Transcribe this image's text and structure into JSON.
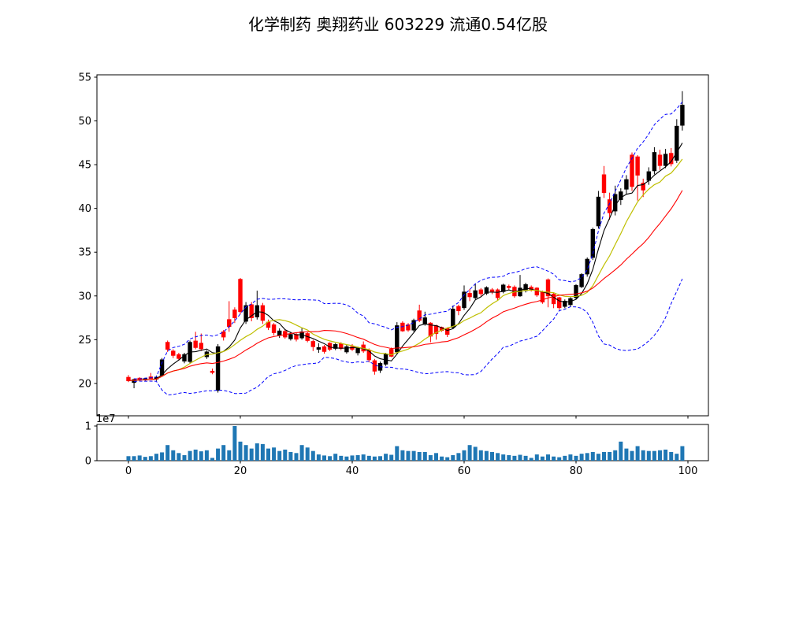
{
  "title": "化学制药  奥翔药业  603229  流通0.54亿股",
  "colors": {
    "up": "#000000",
    "down": "#ff0000",
    "ma_fast": "#000000",
    "ma_mid": "#bfbf00",
    "ma_slow": "#ff0000",
    "bollinger": "#0000ff",
    "volume": "#1f77b4",
    "axis": "#000000",
    "background": "#ffffff"
  },
  "chart_data": {
    "type": "candlestick",
    "title": "化学制药  奥翔药业  603229  流通0.54亿股",
    "x": "bar index 0-99",
    "x_ticks": [
      0,
      20,
      40,
      60,
      80,
      100
    ],
    "price_ticks": [
      20,
      25,
      30,
      35,
      40,
      45,
      50,
      55
    ],
    "volume_ticks": [
      0,
      1
    ],
    "volume_offset_label": "1e7",
    "volume_unit": 10000000,
    "x_range": [
      -5.63,
      103.66
    ],
    "price_range": [
      16.3,
      55.27
    ],
    "volume_range": [
      0,
      1.045
    ],
    "grid": false,
    "legend": "none",
    "overlays": [
      {
        "name": "MA fast",
        "window": 5,
        "style": "solid black"
      },
      {
        "name": "MA mid",
        "window": 10,
        "style": "solid yellow"
      },
      {
        "name": "MA slow",
        "window": 20,
        "style": "solid red"
      },
      {
        "name": "Bollinger upper/lower",
        "window": 20,
        "k": 2,
        "style": "dashed blue"
      }
    ],
    "candles_ohlc": [
      [
        20.7,
        20.95,
        20.15,
        20.3
      ],
      [
        20.1,
        20.55,
        19.45,
        20.45
      ],
      [
        20.6,
        20.7,
        20.3,
        20.4
      ],
      [
        20.45,
        20.6,
        20.3,
        20.55
      ],
      [
        20.75,
        21.2,
        20.5,
        20.55
      ],
      [
        20.5,
        20.9,
        20.3,
        20.7
      ],
      [
        20.95,
        22.9,
        20.8,
        22.7
      ],
      [
        24.7,
        24.9,
        23.6,
        23.9
      ],
      [
        23.7,
        23.9,
        22.9,
        23.2
      ],
      [
        23.3,
        23.5,
        22.6,
        22.85
      ],
      [
        22.55,
        23.5,
        22.3,
        23.3
      ],
      [
        22.5,
        24.9,
        22.3,
        24.7
      ],
      [
        24.85,
        25.9,
        23.9,
        24.1
      ],
      [
        24.6,
        25.7,
        23.7,
        23.95
      ],
      [
        23.05,
        23.8,
        22.8,
        23.6
      ],
      [
        21.4,
        21.7,
        21.05,
        21.25
      ],
      [
        19.2,
        24.5,
        18.95,
        24.2
      ],
      [
        25.9,
        26.1,
        24.9,
        25.3
      ],
      [
        27.3,
        29.4,
        25.9,
        26.5
      ],
      [
        28.4,
        28.7,
        26.9,
        27.5
      ],
      [
        31.9,
        32.05,
        27.9,
        28.2
      ],
      [
        27.1,
        29.3,
        26.8,
        28.9
      ],
      [
        29.0,
        29.3,
        27.1,
        27.5
      ],
      [
        27.6,
        30.6,
        27.3,
        28.9
      ],
      [
        28.9,
        29.2,
        26.8,
        27.2
      ],
      [
        27.0,
        27.3,
        26.1,
        26.4
      ],
      [
        26.7,
        26.9,
        25.5,
        25.8
      ],
      [
        25.5,
        26.3,
        25.2,
        26.0
      ],
      [
        25.95,
        26.2,
        25.1,
        25.3
      ],
      [
        25.1,
        25.9,
        24.9,
        25.6
      ],
      [
        25.6,
        25.8,
        24.8,
        25.05
      ],
      [
        25.2,
        26.3,
        25.0,
        25.9
      ],
      [
        25.7,
        25.9,
        24.7,
        24.9
      ],
      [
        24.8,
        25.0,
        23.7,
        24.2
      ],
      [
        23.9,
        24.6,
        23.5,
        24.1
      ],
      [
        24.2,
        24.4,
        23.4,
        23.65
      ],
      [
        24.6,
        24.7,
        23.7,
        23.9
      ],
      [
        24.0,
        24.6,
        23.8,
        24.45
      ],
      [
        24.55,
        24.7,
        23.8,
        24.0
      ],
      [
        23.6,
        24.4,
        23.4,
        24.2
      ],
      [
        24.2,
        24.5,
        23.7,
        23.9
      ],
      [
        23.5,
        24.2,
        23.2,
        24.0
      ],
      [
        24.4,
        24.8,
        23.5,
        23.7
      ],
      [
        23.8,
        24.0,
        22.4,
        22.7
      ],
      [
        22.6,
        22.8,
        21.0,
        21.4
      ],
      [
        21.5,
        22.5,
        21.2,
        22.3
      ],
      [
        22.2,
        23.5,
        22.0,
        23.35
      ],
      [
        23.9,
        24.1,
        23.0,
        23.1
      ],
      [
        23.6,
        27.0,
        23.4,
        26.6
      ],
      [
        26.9,
        27.1,
        25.9,
        26.0
      ],
      [
        26.7,
        26.9,
        25.9,
        26.1
      ],
      [
        26.1,
        27.4,
        25.9,
        27.2
      ],
      [
        28.3,
        29.0,
        27.0,
        27.2
      ],
      [
        26.8,
        28.2,
        26.6,
        27.5
      ],
      [
        26.9,
        27.0,
        24.7,
        25.4
      ],
      [
        26.6,
        26.7,
        25.0,
        25.7
      ],
      [
        26.4,
        26.5,
        25.9,
        26.05
      ],
      [
        26.3,
        26.4,
        25.3,
        25.6
      ],
      [
        26.4,
        28.9,
        26.2,
        28.5
      ],
      [
        28.8,
        29.0,
        27.8,
        28.3
      ],
      [
        28.65,
        31.2,
        28.4,
        30.45
      ],
      [
        30.3,
        30.8,
        29.4,
        29.9
      ],
      [
        29.8,
        31.4,
        29.6,
        30.6
      ],
      [
        30.7,
        30.9,
        30.0,
        30.25
      ],
      [
        30.3,
        31.1,
        30.1,
        30.95
      ],
      [
        30.7,
        30.9,
        30.2,
        30.45
      ],
      [
        30.7,
        30.85,
        29.5,
        29.8
      ],
      [
        30.5,
        31.4,
        30.3,
        31.25
      ],
      [
        31.1,
        31.3,
        30.7,
        30.95
      ],
      [
        31.0,
        31.2,
        29.8,
        30.0
      ],
      [
        30.0,
        32.4,
        29.9,
        30.9
      ],
      [
        30.6,
        31.5,
        30.4,
        31.3
      ],
      [
        31.0,
        31.2,
        30.5,
        30.75
      ],
      [
        30.9,
        31.0,
        29.9,
        30.1
      ],
      [
        30.45,
        30.6,
        29.1,
        29.3
      ],
      [
        31.85,
        32.0,
        28.7,
        30.0
      ],
      [
        30.2,
        30.4,
        28.6,
        29.1
      ],
      [
        29.8,
        29.9,
        28.4,
        28.65
      ],
      [
        28.8,
        29.6,
        28.6,
        29.4
      ],
      [
        29.0,
        29.85,
        28.8,
        29.7
      ],
      [
        29.8,
        31.35,
        29.6,
        31.2
      ],
      [
        31.05,
        32.6,
        30.9,
        32.45
      ],
      [
        32.5,
        34.4,
        32.2,
        34.2
      ],
      [
        34.4,
        37.8,
        34.1,
        37.6
      ],
      [
        38.0,
        42.0,
        37.7,
        41.3
      ],
      [
        43.85,
        44.85,
        41.2,
        41.8
      ],
      [
        41.0,
        41.8,
        38.7,
        39.5
      ],
      [
        39.7,
        42.6,
        39.2,
        41.6
      ],
      [
        41.0,
        42.3,
        40.4,
        41.9
      ],
      [
        42.2,
        43.8,
        41.6,
        43.3
      ],
      [
        46.1,
        46.4,
        42.0,
        42.5
      ],
      [
        45.9,
        46.1,
        40.9,
        43.8
      ],
      [
        42.9,
        43.4,
        41.3,
        42.1
      ],
      [
        43.2,
        44.7,
        42.7,
        44.2
      ],
      [
        44.3,
        47.0,
        43.9,
        46.4
      ],
      [
        46.1,
        46.7,
        44.4,
        44.9
      ],
      [
        44.9,
        46.8,
        44.6,
        46.2
      ],
      [
        46.3,
        46.9,
        44.8,
        45.1
      ],
      [
        45.5,
        50.2,
        45.2,
        49.4
      ],
      [
        49.5,
        53.4,
        48.9,
        51.8
      ]
    ],
    "volumes_1e7": [
      0.13,
      0.13,
      0.15,
      0.11,
      0.13,
      0.2,
      0.24,
      0.45,
      0.3,
      0.22,
      0.16,
      0.28,
      0.32,
      0.27,
      0.3,
      0.08,
      0.35,
      0.45,
      0.3,
      1.0,
      0.55,
      0.45,
      0.35,
      0.5,
      0.48,
      0.35,
      0.38,
      0.28,
      0.32,
      0.25,
      0.22,
      0.45,
      0.38,
      0.28,
      0.18,
      0.15,
      0.13,
      0.2,
      0.14,
      0.12,
      0.15,
      0.16,
      0.18,
      0.14,
      0.12,
      0.13,
      0.2,
      0.17,
      0.42,
      0.3,
      0.28,
      0.28,
      0.25,
      0.25,
      0.16,
      0.22,
      0.12,
      0.1,
      0.16,
      0.22,
      0.3,
      0.45,
      0.4,
      0.3,
      0.28,
      0.25,
      0.22,
      0.18,
      0.16,
      0.14,
      0.17,
      0.14,
      0.08,
      0.18,
      0.12,
      0.18,
      0.12,
      0.1,
      0.14,
      0.18,
      0.14,
      0.2,
      0.22,
      0.25,
      0.2,
      0.25,
      0.25,
      0.3,
      0.55,
      0.35,
      0.28,
      0.42,
      0.3,
      0.28,
      0.28,
      0.3,
      0.32,
      0.25,
      0.2,
      0.42
    ]
  }
}
